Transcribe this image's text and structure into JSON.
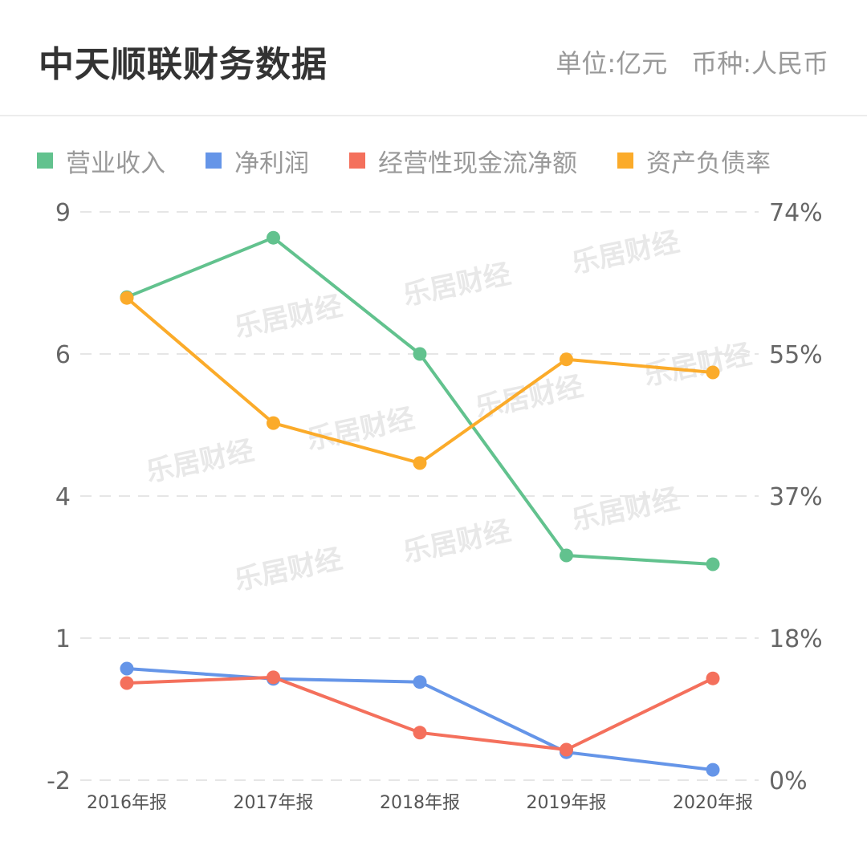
{
  "header": {
    "title": "中天顺联财务数据",
    "unit_label": "单位:亿元",
    "currency_label": "币种:人民币"
  },
  "legend": [
    {
      "label": "营业收入",
      "color": "#62c28e"
    },
    {
      "label": "净利润",
      "color": "#6595e8"
    },
    {
      "label": "经营性现金流净额",
      "color": "#f4705c"
    },
    {
      "label": "资产负债率",
      "color": "#fbab2a"
    }
  ],
  "watermark": "乐居财经",
  "chart_data": {
    "type": "line",
    "title": "中天顺联财务数据",
    "categories": [
      "2016年报",
      "2017年报",
      "2018年报",
      "2019年报",
      "2020年报"
    ],
    "left_axis": {
      "unit": "亿元",
      "ticks": [
        9,
        6,
        4,
        1,
        -2
      ],
      "ylim": [
        -2,
        9
      ]
    },
    "right_axis": {
      "ticks": [
        "74%",
        "55%",
        "37%",
        "18%",
        "0%"
      ],
      "ylim": [
        0,
        74
      ]
    },
    "series": [
      {
        "name": "营业收入",
        "axis": "left",
        "color": "#62c28e",
        "values": [
          7.35,
          8.5,
          6.25,
          2.35,
          2.18
        ]
      },
      {
        "name": "净利润",
        "axis": "left",
        "color": "#6595e8",
        "values": [
          0.16,
          -0.04,
          -0.1,
          -1.46,
          -1.8
        ]
      },
      {
        "name": "经营性现金流净额",
        "axis": "left",
        "color": "#f4705c",
        "values": [
          -0.12,
          -0.01,
          -1.08,
          -1.41,
          -0.03
        ]
      },
      {
        "name": "资产负债率",
        "axis": "right",
        "color": "#fbab2a",
        "values": [
          62.8,
          46.5,
          41.3,
          54.8,
          53.1
        ]
      }
    ],
    "grid": true,
    "legend_position": "top"
  }
}
